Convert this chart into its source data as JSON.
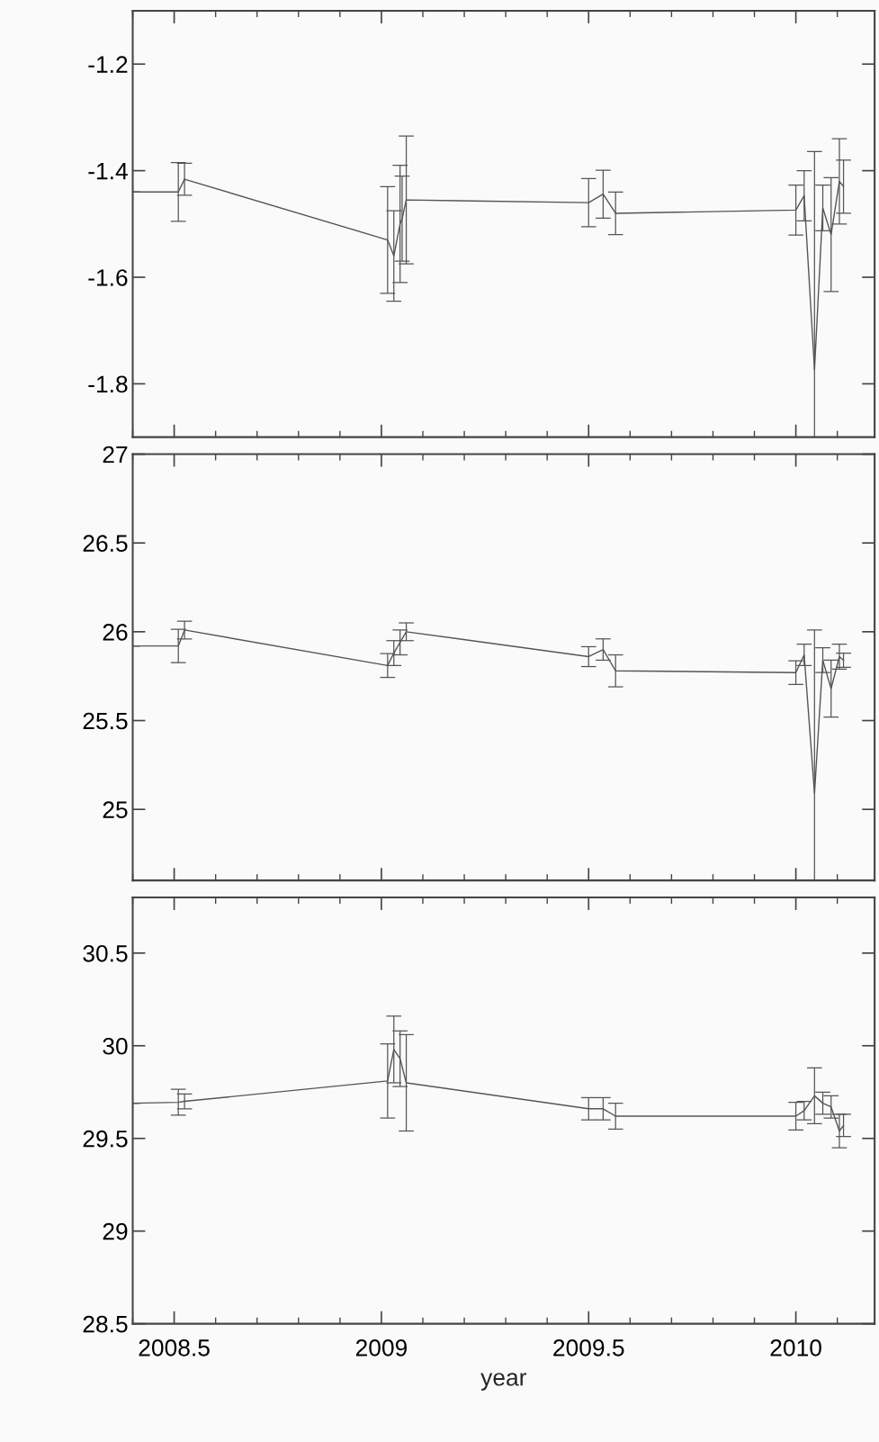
{
  "chart_data": [
    {
      "type": "line",
      "x": [
        2008.4,
        2008.51,
        2008.525,
        2009.015,
        2009.03,
        2009.045,
        2009.05,
        2009.06,
        2009.5,
        2009.535,
        2009.565,
        2010.0,
        2010.02,
        2010.045,
        2010.065,
        2010.085,
        2010.105,
        2010.115
      ],
      "series": [
        {
          "color": "#555555",
          "values": [
            -1.44,
            -1.44,
            -1.416,
            -1.53,
            -1.56,
            -1.5,
            -1.49,
            -1.455,
            -1.46,
            -1.444,
            -1.48,
            -1.474,
            -1.447,
            -1.774,
            -1.47,
            -1.52,
            -1.42,
            -1.43
          ],
          "errors": [
            null,
            0.055,
            0.03,
            0.1,
            0.085,
            0.11,
            0.08,
            0.12,
            0.045,
            0.045,
            0.04,
            0.047,
            0.047,
            [
              -1.9,
              -1.364
            ],
            0.043,
            0.107,
            0.08,
            0.05
          ]
        }
      ],
      "xlim": [
        2008.4,
        2010.19
      ],
      "xticks": [
        2008.5,
        2009,
        2009.5,
        2010
      ],
      "ylim": [
        -1.9,
        -1.1
      ],
      "yticks": [
        -1.8,
        -1.6,
        -1.4,
        -1.2
      ],
      "tick_labels": "y",
      "grid": false
    },
    {
      "type": "line",
      "x": [
        2008.4,
        2008.51,
        2008.525,
        2009.015,
        2009.03,
        2009.045,
        2009.06,
        2009.5,
        2009.535,
        2009.565,
        2010.0,
        2010.02,
        2010.045,
        2010.065,
        2010.085,
        2010.105,
        2010.115
      ],
      "series": [
        {
          "color": "#555555",
          "values": [
            25.92,
            25.92,
            26.01,
            25.81,
            25.88,
            25.94,
            26.0,
            25.86,
            25.9,
            25.78,
            25.77,
            25.87,
            25.09,
            25.84,
            25.68,
            25.86,
            25.84
          ],
          "errors": [
            null,
            0.094,
            0.05,
            0.067,
            0.07,
            0.07,
            0.05,
            0.056,
            0.06,
            0.09,
            0.066,
            0.06,
            [
              24.6,
              26.01
            ],
            0.07,
            0.16,
            0.07,
            0.04
          ]
        }
      ],
      "xlim": [
        2008.4,
        2010.19
      ],
      "xticks": [
        2008.5,
        2009,
        2009.5,
        2010
      ],
      "ylim": [
        24.6,
        27
      ],
      "yticks": [
        25,
        25.5,
        26,
        26.5,
        27
      ],
      "tick_labels": "y",
      "grid": false
    },
    {
      "type": "line",
      "x": [
        2008.4,
        2008.51,
        2008.525,
        2009.015,
        2009.03,
        2009.045,
        2009.06,
        2009.5,
        2009.535,
        2009.565,
        2010.0,
        2010.02,
        2010.045,
        2010.065,
        2010.085,
        2010.105,
        2010.115
      ],
      "series": [
        {
          "color": "#555555",
          "values": [
            29.69,
            29.695,
            29.7,
            29.81,
            29.98,
            29.93,
            29.8,
            29.66,
            29.66,
            29.62,
            29.62,
            29.65,
            29.73,
            29.69,
            29.67,
            29.54,
            29.57
          ],
          "errors": [
            null,
            0.07,
            0.04,
            0.2,
            0.18,
            0.15,
            0.26,
            0.06,
            0.06,
            0.07,
            0.075,
            0.05,
            0.15,
            0.06,
            0.06,
            0.09,
            0.06
          ]
        }
      ],
      "xlim": [
        2008.4,
        2010.19
      ],
      "xticks": [
        2008.5,
        2009,
        2009.5,
        2010
      ],
      "ylim": [
        28.5,
        30.8
      ],
      "yticks": [
        28.5,
        29,
        29.5,
        30,
        30.5
      ],
      "xlabel": "year",
      "grid": false
    }
  ]
}
